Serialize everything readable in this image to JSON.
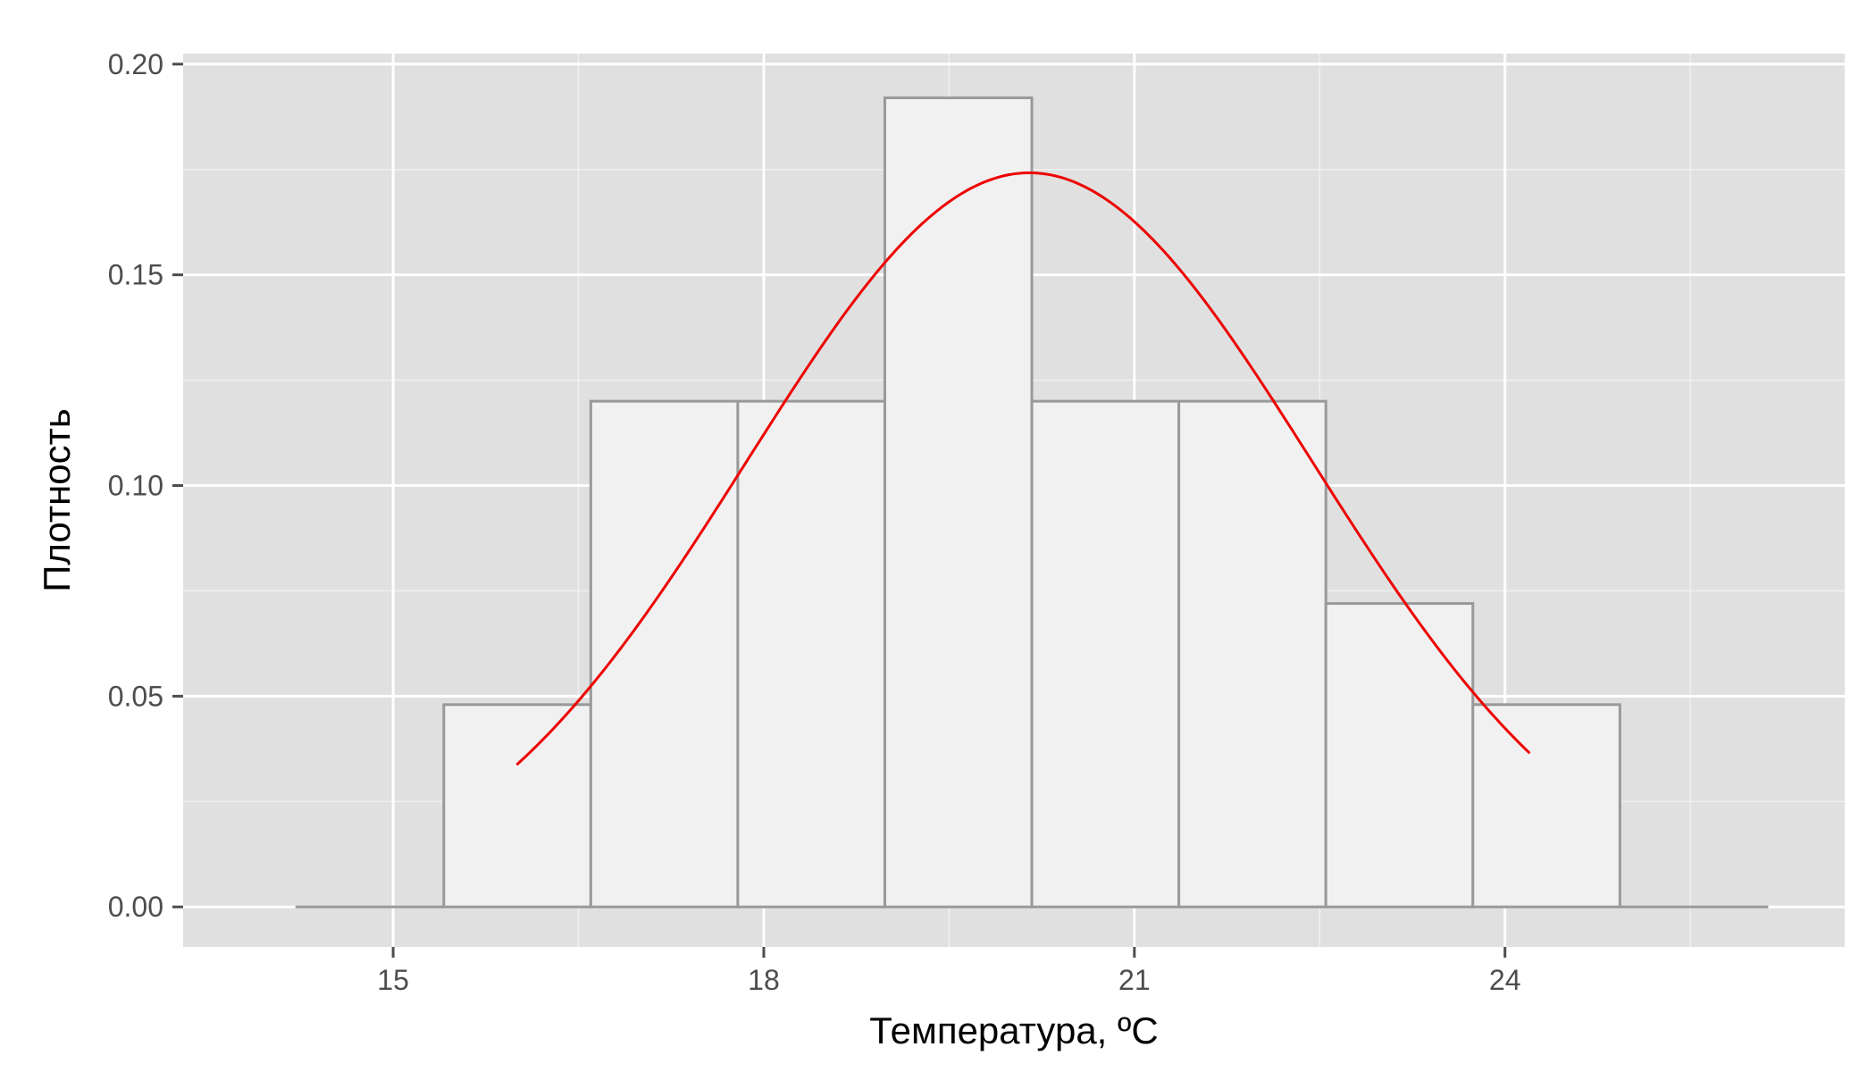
{
  "chart_data": {
    "type": "bar",
    "title": "",
    "xlabel": "Температура, ºC",
    "ylabel": "Плотность",
    "xlim": [
      13.3,
      26.75
    ],
    "ylim": [
      -0.0095,
      0.2025
    ],
    "x_ticks": [
      15,
      18,
      21,
      24
    ],
    "x_tick_labels": [
      "15",
      "18",
      "21",
      "24"
    ],
    "y_ticks": [
      0,
      0.05,
      0.1,
      0.15,
      0.2
    ],
    "y_tick_labels": [
      "0.00",
      "0.05",
      "0.10",
      "0.15",
      "0.20"
    ],
    "x_minor_grid": [
      16.5,
      19.5,
      22.5,
      25.5
    ],
    "y_minor_grid": [
      0.025,
      0.075,
      0.125,
      0.175
    ],
    "grid": true,
    "background_color": "#e0e0e0",
    "bar_fill": "#f1f1f1",
    "bar_outline": "#999999",
    "curve_color": "#ee0000",
    "bins": [
      {
        "x0": 14.22,
        "x1": 15.41,
        "density": 0.0
      },
      {
        "x0": 15.41,
        "x1": 16.6,
        "density": 0.048
      },
      {
        "x0": 16.6,
        "x1": 17.79,
        "density": 0.12
      },
      {
        "x0": 17.79,
        "x1": 18.98,
        "density": 0.12
      },
      {
        "x0": 18.98,
        "x1": 20.17,
        "density": 0.192
      },
      {
        "x0": 20.17,
        "x1": 21.36,
        "density": 0.12
      },
      {
        "x0": 21.36,
        "x1": 22.55,
        "density": 0.12
      },
      {
        "x0": 22.55,
        "x1": 23.74,
        "density": 0.072
      },
      {
        "x0": 23.74,
        "x1": 24.93,
        "density": 0.048
      },
      {
        "x0": 24.93,
        "x1": 26.12,
        "density": 0.0
      }
    ],
    "series": [
      {
        "type": "line",
        "curve": "normal-density",
        "mean": 20.15,
        "sd": 2.29,
        "x_range": [
          16.0,
          24.2
        ]
      }
    ]
  }
}
